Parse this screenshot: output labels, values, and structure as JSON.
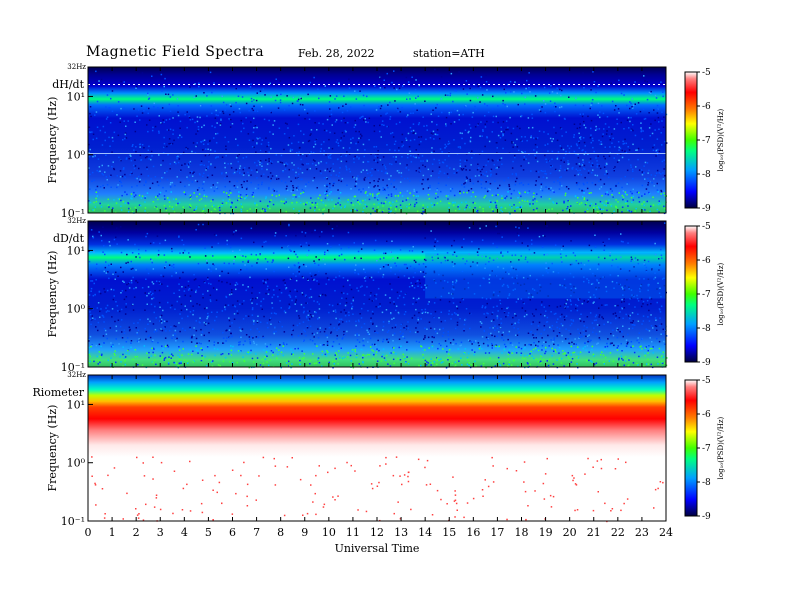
{
  "header": {
    "title": "Magnetic  Field  Spectra",
    "date": "Feb. 28, 2022",
    "station": "station=ATH"
  },
  "chart_data": {
    "type": "heatmap",
    "xlabel": "Universal  Time",
    "x_ticks": [
      "0",
      "1",
      "2",
      "3",
      "4",
      "5",
      "6",
      "7",
      "8",
      "9",
      "10",
      "11",
      "12",
      "13",
      "14",
      "15",
      "16",
      "17",
      "18",
      "19",
      "20",
      "21",
      "22",
      "23",
      "24"
    ],
    "xlim": [
      0,
      24
    ],
    "ylabel": "Frequency  (Hz)",
    "y_scale": "log",
    "ylim": [
      0.1,
      32
    ],
    "y_top_label": "32Hz",
    "y_ticks": [
      "10¹",
      "10⁰",
      "10⁻¹"
    ],
    "colorbar": {
      "label": "log₁₀(PSD)(V²/Hz)",
      "ticks": [
        "-5",
        "-6",
        "-7",
        "-8",
        "-9"
      ],
      "range": [
        -9,
        -5
      ],
      "colors": [
        "#000060",
        "#0000ff",
        "#00c0ff",
        "#00ff60",
        "#ffff00",
        "#ff7f00",
        "#ff0000",
        "#ffffff"
      ]
    },
    "panels": [
      {
        "label": "dH/dt"
      },
      {
        "label": "dD/dt"
      },
      {
        "label": "Riometer"
      }
    ]
  }
}
